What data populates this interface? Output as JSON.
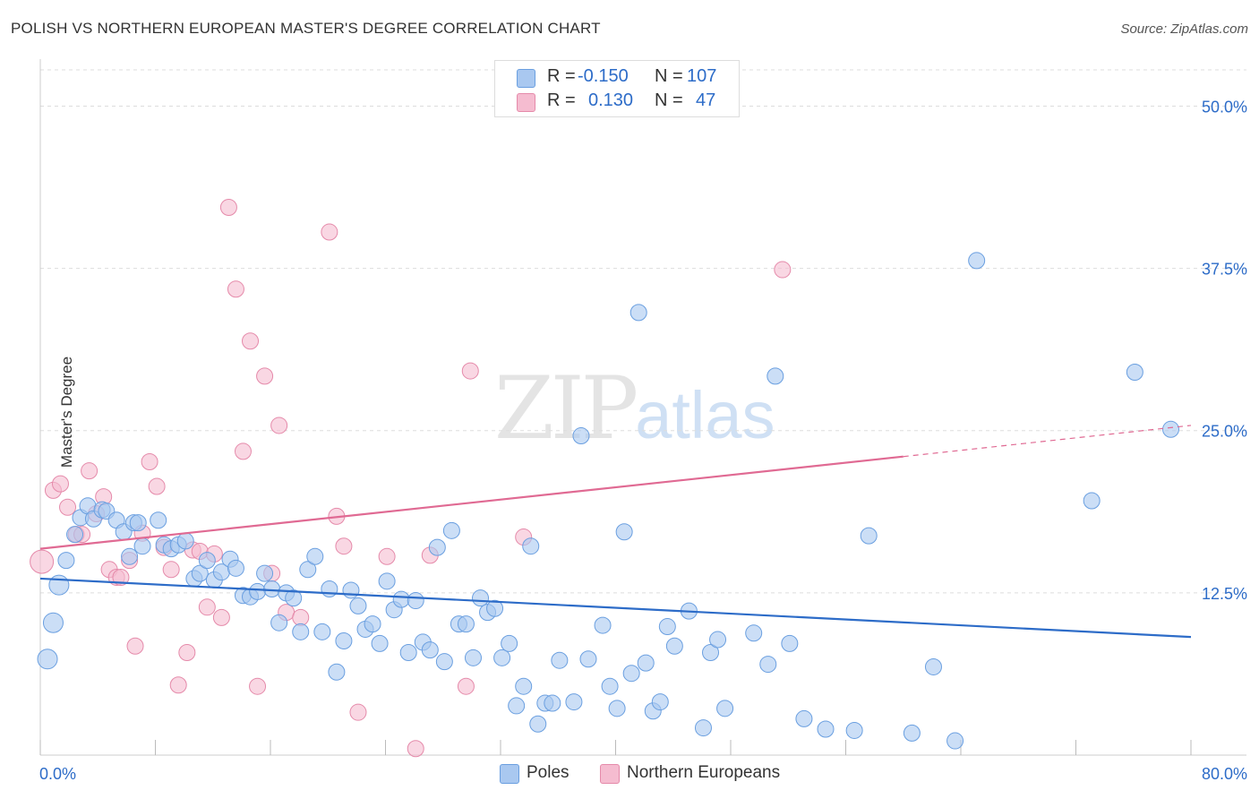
{
  "title": "POLISH VS NORTHERN EUROPEAN MASTER'S DEGREE CORRELATION CHART",
  "source": "Source: ZipAtlas.com",
  "watermark": {
    "zip": "ZIP",
    "atlas": "atlas"
  },
  "legend": {
    "rows": [
      {
        "r_label": "R =",
        "r_value": "-0.150",
        "n_label": "N =",
        "n_value": "107"
      },
      {
        "r_label": "R =",
        "r_value": "0.130",
        "n_label": "N =",
        "n_value": "47"
      }
    ]
  },
  "colors": {
    "poles_fill": "#a9c8f0",
    "poles_stroke": "#6a9fe0",
    "poles_line": "#2d6cc8",
    "ne_fill": "#f5bcd0",
    "ne_stroke": "#e58aaa",
    "ne_line": "#e06a93",
    "axis_text": "#2d6cc8",
    "grid": "#dddddd"
  },
  "chart_data": {
    "type": "scatter",
    "title": "POLISH VS NORTHERN EUROPEAN MASTER'S DEGREE CORRELATION CHART",
    "xlabel": "",
    "ylabel": "Master's Degree",
    "xlim": [
      0,
      80
    ],
    "ylim": [
      0,
      53
    ],
    "x_tick_labels": [
      "0.0%",
      "80.0%"
    ],
    "y_ticks": [
      12.5,
      25.0,
      37.5,
      50.0
    ],
    "y_tick_labels": [
      "12.5%",
      "25.0%",
      "37.5%",
      "50.0%"
    ],
    "grid": true,
    "legend_position": "top-center",
    "series": [
      {
        "name": "Poles",
        "trend": {
          "x": [
            0,
            80
          ],
          "y": [
            13.6,
            9.1
          ]
        },
        "points": [
          [
            0.5,
            7.4
          ],
          [
            0.9,
            10.2
          ],
          [
            1.3,
            13.1
          ],
          [
            1.8,
            15.0
          ],
          [
            2.4,
            17.0
          ],
          [
            2.8,
            18.3
          ],
          [
            3.3,
            19.2
          ],
          [
            3.7,
            18.2
          ],
          [
            4.3,
            18.9
          ],
          [
            4.6,
            18.8
          ],
          [
            5.3,
            18.1
          ],
          [
            5.8,
            17.2
          ],
          [
            6.2,
            15.3
          ],
          [
            6.5,
            17.9
          ],
          [
            6.8,
            17.9
          ],
          [
            7.1,
            16.1
          ],
          [
            8.2,
            18.1
          ],
          [
            8.6,
            16.2
          ],
          [
            9.1,
            15.9
          ],
          [
            9.6,
            16.2
          ],
          [
            10.1,
            16.5
          ],
          [
            10.7,
            13.6
          ],
          [
            11.1,
            14.0
          ],
          [
            11.6,
            15.0
          ],
          [
            12.1,
            13.5
          ],
          [
            12.6,
            14.1
          ],
          [
            13.2,
            15.1
          ],
          [
            13.6,
            14.4
          ],
          [
            14.1,
            12.3
          ],
          [
            14.6,
            12.2
          ],
          [
            15.1,
            12.6
          ],
          [
            15.6,
            14.0
          ],
          [
            16.1,
            12.8
          ],
          [
            16.6,
            10.2
          ],
          [
            17.1,
            12.5
          ],
          [
            17.6,
            12.1
          ],
          [
            18.1,
            9.5
          ],
          [
            18.6,
            14.3
          ],
          [
            19.1,
            15.3
          ],
          [
            19.6,
            9.5
          ],
          [
            20.1,
            12.8
          ],
          [
            20.6,
            6.4
          ],
          [
            21.1,
            8.8
          ],
          [
            21.6,
            12.7
          ],
          [
            22.1,
            11.5
          ],
          [
            22.6,
            9.7
          ],
          [
            23.1,
            10.1
          ],
          [
            23.6,
            8.6
          ],
          [
            24.1,
            13.4
          ],
          [
            24.6,
            11.2
          ],
          [
            25.1,
            12.0
          ],
          [
            25.6,
            7.9
          ],
          [
            26.1,
            11.9
          ],
          [
            26.6,
            8.7
          ],
          [
            27.1,
            8.1
          ],
          [
            27.6,
            16.0
          ],
          [
            28.1,
            7.2
          ],
          [
            28.6,
            17.3
          ],
          [
            29.1,
            10.1
          ],
          [
            29.6,
            10.1
          ],
          [
            30.1,
            7.5
          ],
          [
            30.6,
            12.1
          ],
          [
            31.1,
            11.0
          ],
          [
            31.6,
            11.3
          ],
          [
            32.1,
            7.5
          ],
          [
            32.6,
            8.6
          ],
          [
            33.1,
            3.8
          ],
          [
            33.6,
            5.3
          ],
          [
            34.1,
            16.1
          ],
          [
            34.6,
            2.4
          ],
          [
            35.1,
            4.0
          ],
          [
            35.6,
            4.0
          ],
          [
            36.1,
            7.3
          ],
          [
            37.1,
            4.1
          ],
          [
            37.6,
            24.6
          ],
          [
            38.1,
            7.4
          ],
          [
            39.1,
            10.0
          ],
          [
            39.6,
            5.3
          ],
          [
            40.1,
            3.6
          ],
          [
            40.6,
            17.2
          ],
          [
            41.1,
            6.3
          ],
          [
            41.6,
            34.1
          ],
          [
            42.1,
            7.1
          ],
          [
            42.6,
            3.4
          ],
          [
            43.1,
            4.1
          ],
          [
            43.6,
            9.9
          ],
          [
            44.1,
            8.4
          ],
          [
            45.1,
            11.1
          ],
          [
            46.1,
            2.1
          ],
          [
            46.6,
            7.9
          ],
          [
            47.1,
            8.9
          ],
          [
            47.6,
            3.6
          ],
          [
            49.6,
            9.4
          ],
          [
            50.6,
            7.0
          ],
          [
            51.1,
            29.2
          ],
          [
            52.1,
            8.6
          ],
          [
            53.1,
            2.8
          ],
          [
            54.6,
            2.0
          ],
          [
            56.6,
            1.9
          ],
          [
            57.6,
            16.9
          ],
          [
            60.6,
            1.7
          ],
          [
            62.1,
            6.8
          ],
          [
            63.6,
            1.1
          ],
          [
            65.1,
            38.1
          ],
          [
            73.1,
            19.6
          ],
          [
            76.1,
            29.5
          ],
          [
            78.6,
            25.1
          ]
        ]
      },
      {
        "name": "Northern Europeans",
        "trend": {
          "x": [
            0,
            60
          ],
          "y": [
            15.9,
            23.0
          ]
        },
        "trend_dashed": {
          "x": [
            60,
            80
          ],
          "y": [
            23.0,
            25.4
          ]
        },
        "points": [
          [
            0.1,
            14.9
          ],
          [
            0.9,
            20.4
          ],
          [
            1.4,
            20.9
          ],
          [
            1.9,
            19.1
          ],
          [
            2.5,
            17.0
          ],
          [
            2.9,
            17.0
          ],
          [
            3.4,
            21.9
          ],
          [
            3.9,
            18.6
          ],
          [
            4.4,
            19.9
          ],
          [
            4.8,
            14.3
          ],
          [
            5.3,
            13.7
          ],
          [
            5.6,
            13.7
          ],
          [
            6.2,
            15.0
          ],
          [
            6.6,
            8.4
          ],
          [
            7.1,
            17.1
          ],
          [
            7.6,
            22.6
          ],
          [
            8.1,
            20.7
          ],
          [
            8.6,
            16.0
          ],
          [
            9.1,
            14.3
          ],
          [
            9.6,
            5.4
          ],
          [
            10.2,
            7.9
          ],
          [
            10.6,
            15.8
          ],
          [
            11.1,
            15.7
          ],
          [
            11.6,
            11.4
          ],
          [
            12.1,
            15.5
          ],
          [
            12.6,
            10.6
          ],
          [
            13.1,
            42.2
          ],
          [
            13.6,
            35.9
          ],
          [
            14.1,
            23.4
          ],
          [
            14.6,
            31.9
          ],
          [
            15.1,
            5.3
          ],
          [
            15.6,
            29.2
          ],
          [
            16.1,
            14.0
          ],
          [
            16.6,
            25.4
          ],
          [
            17.1,
            11.0
          ],
          [
            18.1,
            10.6
          ],
          [
            20.1,
            40.3
          ],
          [
            20.6,
            18.4
          ],
          [
            21.1,
            16.1
          ],
          [
            22.1,
            3.3
          ],
          [
            24.1,
            15.3
          ],
          [
            26.1,
            0.5
          ],
          [
            27.1,
            15.4
          ],
          [
            29.6,
            5.3
          ],
          [
            29.9,
            29.6
          ],
          [
            33.6,
            16.8
          ],
          [
            51.6,
            37.4
          ]
        ]
      }
    ]
  }
}
